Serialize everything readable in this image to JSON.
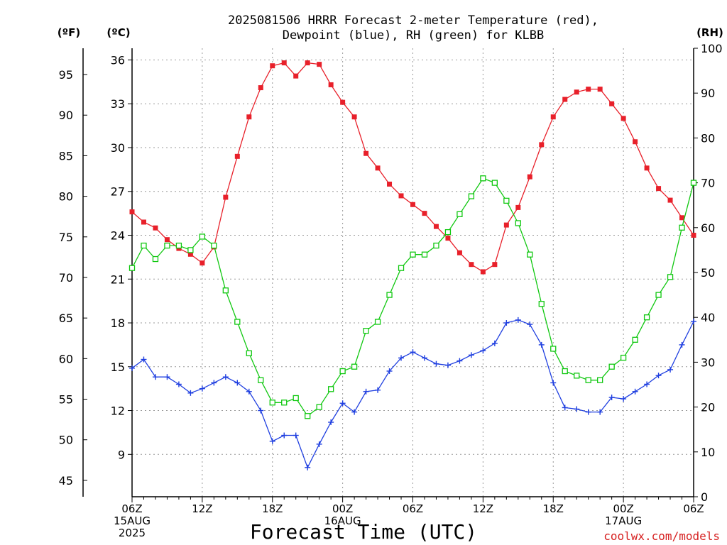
{
  "chart_data": {
    "type": "line",
    "title_line1": "2025081506 HRRR Forecast 2-meter Temperature (red),",
    "title_line2": "Dewpoint (blue), RH (green) for KLBB",
    "xlabel": "Forecast Time (UTC)",
    "credit": "coolwx.com/models",
    "left_outer_unit": "(ºF)",
    "left_inner_unit": "(ºC)",
    "right_unit": "(RH)",
    "x_range_hours": [
      0,
      48
    ],
    "x_ticks": [
      {
        "hour": 0,
        "label": "06Z",
        "date1": "15AUG",
        "date2": "2025"
      },
      {
        "hour": 6,
        "label": "12Z"
      },
      {
        "hour": 12,
        "label": "18Z"
      },
      {
        "hour": 18,
        "label": "00Z",
        "date1": "16AUG"
      },
      {
        "hour": 24,
        "label": "06Z"
      },
      {
        "hour": 30,
        "label": "12Z"
      },
      {
        "hour": 36,
        "label": "18Z"
      },
      {
        "hour": 42,
        "label": "00Z",
        "date1": "17AUG"
      },
      {
        "hour": 48,
        "label": "06Z"
      }
    ],
    "celsius_ticks": [
      "9",
      "12",
      "15",
      "18",
      "21",
      "24",
      "27",
      "30",
      "33",
      "36"
    ],
    "fahrenheit_ticks": [
      "45",
      "50",
      "55",
      "60",
      "65",
      "70",
      "75",
      "80",
      "85",
      "90",
      "95"
    ],
    "rh_ticks": [
      "0",
      "10",
      "20",
      "30",
      "40",
      "50",
      "60",
      "70",
      "80",
      "90",
      "100"
    ],
    "celsius_range": [
      6.1,
      36.8
    ],
    "rh_range": [
      0,
      100
    ],
    "colors": {
      "temperature": "#e8202a",
      "dewpoint": "#1f3fe0",
      "rh": "#10c810",
      "grid": "#999999"
    },
    "series": [
      {
        "key": "temperature",
        "marker": "filled-square",
        "values": [
          25.6,
          24.9,
          24.5,
          23.7,
          23.1,
          22.7,
          22.1,
          23.2,
          26.6,
          29.4,
          32.1,
          34.1,
          35.6,
          35.8,
          34.9,
          35.8,
          35.7,
          34.3,
          33.1,
          32.1,
          29.6,
          28.6,
          27.5,
          26.7,
          26.1,
          25.5,
          24.6,
          23.8,
          22.8,
          22.0,
          21.5,
          22.0,
          24.7,
          25.9,
          28.0,
          30.2,
          32.1,
          33.3,
          33.8,
          34.0,
          34.0,
          33.0,
          32.0,
          30.4,
          28.6,
          27.2,
          26.4,
          25.2,
          24.0
        ]
      },
      {
        "key": "dewpoint",
        "marker": "plus",
        "values": [
          14.9,
          15.5,
          14.3,
          14.3,
          13.8,
          13.2,
          13.5,
          13.9,
          14.3,
          13.9,
          13.3,
          12.0,
          9.9,
          10.3,
          10.3,
          8.1,
          9.7,
          11.2,
          12.5,
          11.9,
          13.3,
          13.4,
          14.7,
          15.6,
          16.0,
          15.6,
          15.2,
          15.1,
          15.4,
          15.8,
          16.1,
          16.6,
          18.0,
          18.2,
          17.9,
          16.5,
          13.9,
          12.2,
          12.1,
          11.9,
          11.9,
          12.9,
          12.8,
          13.3,
          13.8,
          14.4,
          14.8,
          16.5,
          18.1
        ]
      },
      {
        "key": "rh",
        "marker": "open-square",
        "values": [
          51,
          56,
          53,
          56,
          56,
          55,
          58,
          56,
          46,
          39,
          32,
          26,
          21,
          21,
          22,
          18,
          20,
          24,
          28,
          29,
          37,
          39,
          45,
          51,
          54,
          54,
          56,
          59,
          63,
          67,
          71,
          70,
          66,
          61,
          54,
          43,
          33,
          28,
          27,
          26,
          26,
          29,
          31,
          35,
          40,
          45,
          49,
          60,
          70
        ]
      }
    ]
  }
}
